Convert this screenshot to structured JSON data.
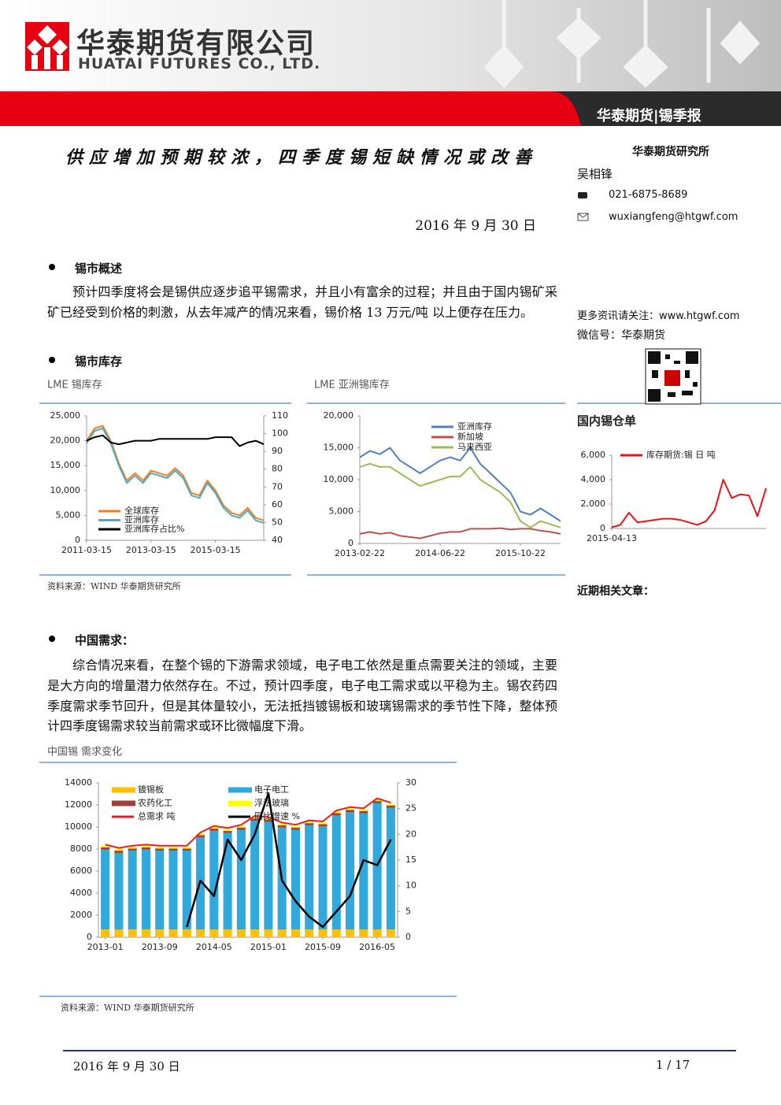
{
  "header": {
    "company_cn": "华泰期货有限公司",
    "company_en": "HUATAI FUTURES CO., LTD.",
    "report_tag": "华泰期货|锡季报"
  },
  "title": "供应增加预期较浓，四季度锡短缺情况或改善",
  "date": "2016 年 9 月 30 日",
  "sidebar": {
    "institute": "华泰期货研究所",
    "author": "吴相锋",
    "phone": "021-6875-8689",
    "email": "wuxiangfeng@htgwf.com",
    "more_info": "更多资讯请关注：www.htgwf.com",
    "wechat": "微信号：华泰期货",
    "related": "近期相关文章："
  },
  "sections": [
    {
      "heading": "锡市概述",
      "paragraph": "预计四季度将会是锡供应逐步追平锡需求，并且小有富余的过程；并且由于国内锡矿采矿已经受到价格的刺激，从去年减产的情况来看，锡价格 13 万元/吨  以上便存在压力。"
    },
    {
      "heading": "锡市库存"
    },
    {
      "heading": "中国需求：",
      "paragraph": "综合情况来看，在整个锡的下游需求领域，电子电工依然是重点需要关注的领域，主要是大方向的增量潜力依然存在。不过，预计四季度，电子电工需求或以平稳为主。锡农药四季度需求季节回升，但是其体量较小，无法抵挡镀锡板和玻璃锡需求的季节性下降，整体预计四季度锡需求较当前需求或环比微幅度下滑。"
    }
  ],
  "chart_data": [
    {
      "type": "line",
      "title": "LME 锡库存",
      "categories": [
        "2011-03-15",
        null,
        null,
        null,
        null,
        null,
        null,
        null,
        "2013-03-15",
        null,
        null,
        null,
        null,
        null,
        null,
        null,
        "2015-03-15",
        null,
        null,
        null,
        null,
        null,
        null
      ],
      "series": [
        {
          "name": "全球库存",
          "color": "#f07f22",
          "values": [
            20000,
            22500,
            23000,
            20000,
            15500,
            12000,
            13500,
            12000,
            14000,
            13500,
            13000,
            14500,
            13000,
            9500,
            9000,
            12000,
            10000,
            7000,
            5500,
            5000,
            6500,
            4500,
            4000
          ]
        },
        {
          "name": "亚洲库存",
          "color": "#4bacc6",
          "values": [
            19500,
            22000,
            22500,
            19500,
            15000,
            11500,
            13000,
            11500,
            13500,
            13000,
            12500,
            14000,
            12500,
            9000,
            8500,
            11500,
            9500,
            6500,
            5000,
            4500,
            6000,
            4000,
            3500
          ]
        },
        {
          "name": "亚洲库存占比%",
          "color": "#000000",
          "axis": "y2",
          "values": [
            96,
            98,
            99,
            95,
            94,
            95,
            96,
            96,
            96,
            97,
            97,
            97,
            97,
            97,
            97,
            97,
            98,
            98,
            98,
            93,
            95,
            96,
            94
          ]
        }
      ],
      "ylim": [
        0,
        25000
      ],
      "yticks": [
        0,
        {
          "value": 5000,
          "label": "5,000"
        },
        {
          "value": 10000,
          "label": "10,000"
        },
        {
          "value": 15000,
          "label": "15,000"
        },
        {
          "value": 20000,
          "label": "20,000"
        },
        {
          "value": 25000,
          "label": "25,000"
        }
      ],
      "y2lim": [
        40,
        110
      ],
      "y2ticks": [
        40,
        50,
        60,
        70,
        80,
        90,
        100,
        110
      ]
    },
    {
      "type": "line",
      "title": "LME 亚洲锡库存",
      "categories": [
        "2013-02-22",
        null,
        null,
        null,
        null,
        null,
        null,
        null,
        "2014-06-22",
        null,
        null,
        null,
        null,
        null,
        null,
        null,
        "2015-10-22",
        null,
        null,
        null,
        null
      ],
      "series": [
        {
          "name": "亚洲库存",
          "color": "#4f81bd",
          "values": [
            13500,
            14500,
            14000,
            15000,
            13000,
            12000,
            11000,
            12000,
            13000,
            13500,
            13000,
            15000,
            12500,
            11000,
            9500,
            8000,
            5000,
            4500,
            5500,
            4500,
            3500
          ]
        },
        {
          "name": "新加坡",
          "color": "#c0504d",
          "values": [
            1500,
            1800,
            1500,
            1700,
            1200,
            1000,
            800,
            1200,
            1600,
            1800,
            1800,
            2300,
            2300,
            2300,
            2400,
            2200,
            2300,
            2300,
            2000,
            1800,
            1500
          ]
        },
        {
          "name": "马来西亚",
          "color": "#9bbb59",
          "values": [
            12000,
            12500,
            12000,
            12000,
            11000,
            10000,
            9000,
            9500,
            10000,
            10500,
            10500,
            12000,
            10000,
            9000,
            8000,
            6500,
            3500,
            2500,
            3500,
            3000,
            2500
          ]
        }
      ],
      "ylim": [
        0,
        20000
      ],
      "yticks": [
        0,
        {
          "value": 5000,
          "label": "5,000"
        },
        {
          "value": 10000,
          "label": "10,000"
        },
        {
          "value": 15000,
          "label": "15,000"
        },
        {
          "value": 20000,
          "label": "20,000"
        }
      ]
    },
    {
      "type": "line",
      "title": "国内锡仓单",
      "categories": [
        "2015-04-13",
        null,
        null,
        null,
        null,
        null,
        null,
        null,
        null,
        null,
        null,
        null,
        null,
        null,
        null,
        null,
        null,
        null,
        null
      ],
      "series": [
        {
          "name": "库存期货:锡 日 吨",
          "color": "#e8141b",
          "values": [
            100,
            300,
            1300,
            500,
            600,
            700,
            800,
            800,
            700,
            500,
            300,
            600,
            1500,
            4000,
            2500,
            2800,
            2700,
            1000,
            3300
          ]
        }
      ],
      "ylim": [
        0,
        6000
      ],
      "yticks": [
        0,
        {
          "value": 2000,
          "label": "2,000"
        },
        {
          "value": 4000,
          "label": "4,000"
        },
        {
          "value": 6000,
          "label": "6,000"
        }
      ]
    },
    {
      "type": "bar",
      "stacked": true,
      "title": "中国锡  需求变化",
      "categories": [
        "2013-01",
        null,
        null,
        null,
        "2013-09",
        null,
        null,
        null,
        "2014-05",
        null,
        null,
        null,
        "2015-01",
        null,
        null,
        null,
        "2015-09",
        null,
        null,
        null,
        "2016-05",
        null
      ],
      "series": [
        {
          "name": "镀锡板",
          "type": "bar",
          "color": "#ffc000",
          "values": [
            700,
            700,
            700,
            700,
            700,
            700,
            700,
            700,
            700,
            700,
            700,
            700,
            700,
            700,
            700,
            700,
            700,
            700,
            700,
            700,
            700,
            700
          ]
        },
        {
          "name": "电子电工",
          "type": "bar",
          "color": "#31a9dc",
          "values": [
            7250,
            6950,
            7150,
            7250,
            7150,
            7150,
            7150,
            8350,
            8950,
            8750,
            9050,
            9850,
            9750,
            9250,
            9050,
            9450,
            9350,
            10350,
            10650,
            10550,
            11450,
            11050
          ]
        },
        {
          "name": "农药化工",
          "type": "bar",
          "color": "#a0403a",
          "values": [
            200,
            200,
            200,
            200,
            200,
            200,
            200,
            200,
            200,
            200,
            200,
            200,
            200,
            200,
            200,
            200,
            200,
            200,
            200,
            200,
            200,
            200
          ]
        },
        {
          "name": "浮法玻璃",
          "type": "bar",
          "color": "#ffff00",
          "values": [
            150,
            150,
            150,
            150,
            150,
            150,
            150,
            150,
            150,
            150,
            150,
            150,
            150,
            150,
            150,
            150,
            150,
            150,
            150,
            150,
            150,
            150
          ]
        },
        {
          "name": "总需求 吨",
          "type": "line",
          "color": "#ee1c25",
          "values": [
            8400,
            8100,
            8300,
            8400,
            8300,
            8300,
            8300,
            9500,
            10100,
            9900,
            10200,
            11000,
            10900,
            10400,
            10200,
            10600,
            10500,
            11500,
            11800,
            11700,
            12600,
            12200
          ]
        },
        {
          "name": "同比增速 %",
          "type": "line",
          "axis": "y2",
          "color": "#000000",
          "values": [
            null,
            null,
            null,
            null,
            null,
            null,
            2,
            11,
            8,
            19,
            15,
            20,
            28,
            11,
            7,
            4,
            2,
            5,
            8,
            15,
            14,
            19
          ]
        }
      ],
      "ylim": [
        0,
        14000
      ],
      "yticks": [
        0,
        2000,
        4000,
        6000,
        8000,
        10000,
        12000,
        14000
      ],
      "y2lim": [
        0,
        30
      ],
      "y2ticks": [
        0,
        5,
        10,
        15,
        20,
        25,
        30
      ]
    }
  ],
  "sources": [
    "资料来源：WIND 华泰期货研究所",
    "资料来源：WIND 华泰期货研究所"
  ],
  "footer": {
    "date": "2016 年 9 月 30 日",
    "page": "1 / 17"
  }
}
